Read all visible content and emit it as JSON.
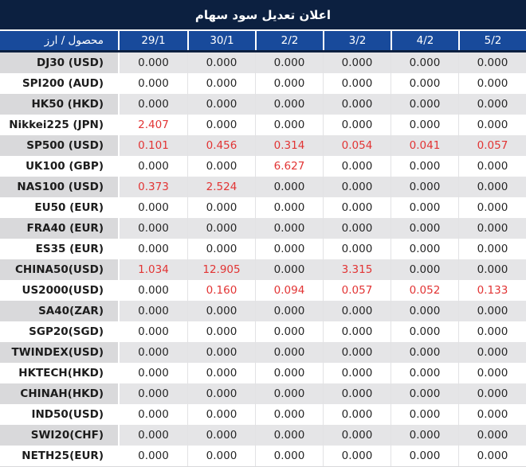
{
  "title": "اعلان تعديل سود سهام",
  "header": {
    "product_label": "محصول / ارز",
    "dates": [
      "29/1",
      "30/1",
      "2/2",
      "3/2",
      "4/2",
      "5/2"
    ]
  },
  "rows": [
    {
      "label": "DJ30 (USD)",
      "values": [
        "0.000",
        "0.000",
        "0.000",
        "0.000",
        "0.000",
        "0.000"
      ],
      "red": [
        false,
        false,
        false,
        false,
        false,
        false
      ]
    },
    {
      "label": "SPI200 (AUD)",
      "values": [
        "0.000",
        "0.000",
        "0.000",
        "0.000",
        "0.000",
        "0.000"
      ],
      "red": [
        false,
        false,
        false,
        false,
        false,
        false
      ]
    },
    {
      "label": "HK50 (HKD)",
      "values": [
        "0.000",
        "0.000",
        "0.000",
        "0.000",
        "0.000",
        "0.000"
      ],
      "red": [
        false,
        false,
        false,
        false,
        false,
        false
      ]
    },
    {
      "label": "Nikkei225 (JPN)",
      "values": [
        "2.407",
        "0.000",
        "0.000",
        "0.000",
        "0.000",
        "0.000"
      ],
      "red": [
        true,
        false,
        false,
        false,
        false,
        false
      ]
    },
    {
      "label": "SP500 (USD)",
      "values": [
        "0.101",
        "0.456",
        "0.314",
        "0.054",
        "0.041",
        "0.057"
      ],
      "red": [
        true,
        true,
        true,
        true,
        true,
        true
      ]
    },
    {
      "label": "UK100 (GBP)",
      "values": [
        "0.000",
        "0.000",
        "6.627",
        "0.000",
        "0.000",
        "0.000"
      ],
      "red": [
        false,
        false,
        true,
        false,
        false,
        false
      ]
    },
    {
      "label": "NAS100 (USD)",
      "values": [
        "0.373",
        "2.524",
        "0.000",
        "0.000",
        "0.000",
        "0.000"
      ],
      "red": [
        true,
        true,
        false,
        false,
        false,
        false
      ]
    },
    {
      "label": "EU50 (EUR)",
      "values": [
        "0.000",
        "0.000",
        "0.000",
        "0.000",
        "0.000",
        "0.000"
      ],
      "red": [
        false,
        false,
        false,
        false,
        false,
        false
      ]
    },
    {
      "label": "FRA40 (EUR)",
      "values": [
        "0.000",
        "0.000",
        "0.000",
        "0.000",
        "0.000",
        "0.000"
      ],
      "red": [
        false,
        false,
        false,
        false,
        false,
        false
      ]
    },
    {
      "label": "ES35 (EUR)",
      "values": [
        "0.000",
        "0.000",
        "0.000",
        "0.000",
        "0.000",
        "0.000"
      ],
      "red": [
        false,
        false,
        false,
        false,
        false,
        false
      ]
    },
    {
      "label": "CHINA50(USD)",
      "values": [
        "1.034",
        "12.905",
        "0.000",
        "3.315",
        "0.000",
        "0.000"
      ],
      "red": [
        true,
        true,
        false,
        true,
        false,
        false
      ]
    },
    {
      "label": "US2000(USD)",
      "values": [
        "0.000",
        "0.160",
        "0.094",
        "0.057",
        "0.052",
        "0.133"
      ],
      "red": [
        false,
        true,
        true,
        true,
        true,
        true
      ]
    },
    {
      "label": "SA40(ZAR)",
      "values": [
        "0.000",
        "0.000",
        "0.000",
        "0.000",
        "0.000",
        "0.000"
      ],
      "red": [
        false,
        false,
        false,
        false,
        false,
        false
      ]
    },
    {
      "label": "SGP20(SGD)",
      "values": [
        "0.000",
        "0.000",
        "0.000",
        "0.000",
        "0.000",
        "0.000"
      ],
      "red": [
        false,
        false,
        false,
        false,
        false,
        false
      ]
    },
    {
      "label": "TWINDEX(USD)",
      "values": [
        "0.000",
        "0.000",
        "0.000",
        "0.000",
        "0.000",
        "0.000"
      ],
      "red": [
        false,
        false,
        false,
        false,
        false,
        false
      ]
    },
    {
      "label": "HKTECH(HKD)",
      "values": [
        "0.000",
        "0.000",
        "0.000",
        "0.000",
        "0.000",
        "0.000"
      ],
      "red": [
        false,
        false,
        false,
        false,
        false,
        false
      ]
    },
    {
      "label": "CHINAH(HKD)",
      "values": [
        "0.000",
        "0.000",
        "0.000",
        "0.000",
        "0.000",
        "0.000"
      ],
      "red": [
        false,
        false,
        false,
        false,
        false,
        false
      ]
    },
    {
      "label": "IND50(USD)",
      "values": [
        "0.000",
        "0.000",
        "0.000",
        "0.000",
        "0.000",
        "0.000"
      ],
      "red": [
        false,
        false,
        false,
        false,
        false,
        false
      ]
    },
    {
      "label": "SWI20(CHF)",
      "values": [
        "0.000",
        "0.000",
        "0.000",
        "0.000",
        "0.000",
        "0.000"
      ],
      "red": [
        false,
        false,
        false,
        false,
        false,
        false
      ]
    },
    {
      "label": "NETH25(EUR)",
      "values": [
        "0.000",
        "0.000",
        "0.000",
        "0.000",
        "0.000",
        "0.000"
      ],
      "red": [
        false,
        false,
        false,
        false,
        false,
        false
      ]
    }
  ],
  "colors": {
    "banner_bg": "#0c2040",
    "header_bg": "#184a9b",
    "row_alt_value_bg": "#e5e5e7",
    "row_alt_label_bg": "#d9d9db",
    "row_bg": "#ffffff",
    "value_text": "#262626",
    "highlight_red": "#e23434"
  }
}
